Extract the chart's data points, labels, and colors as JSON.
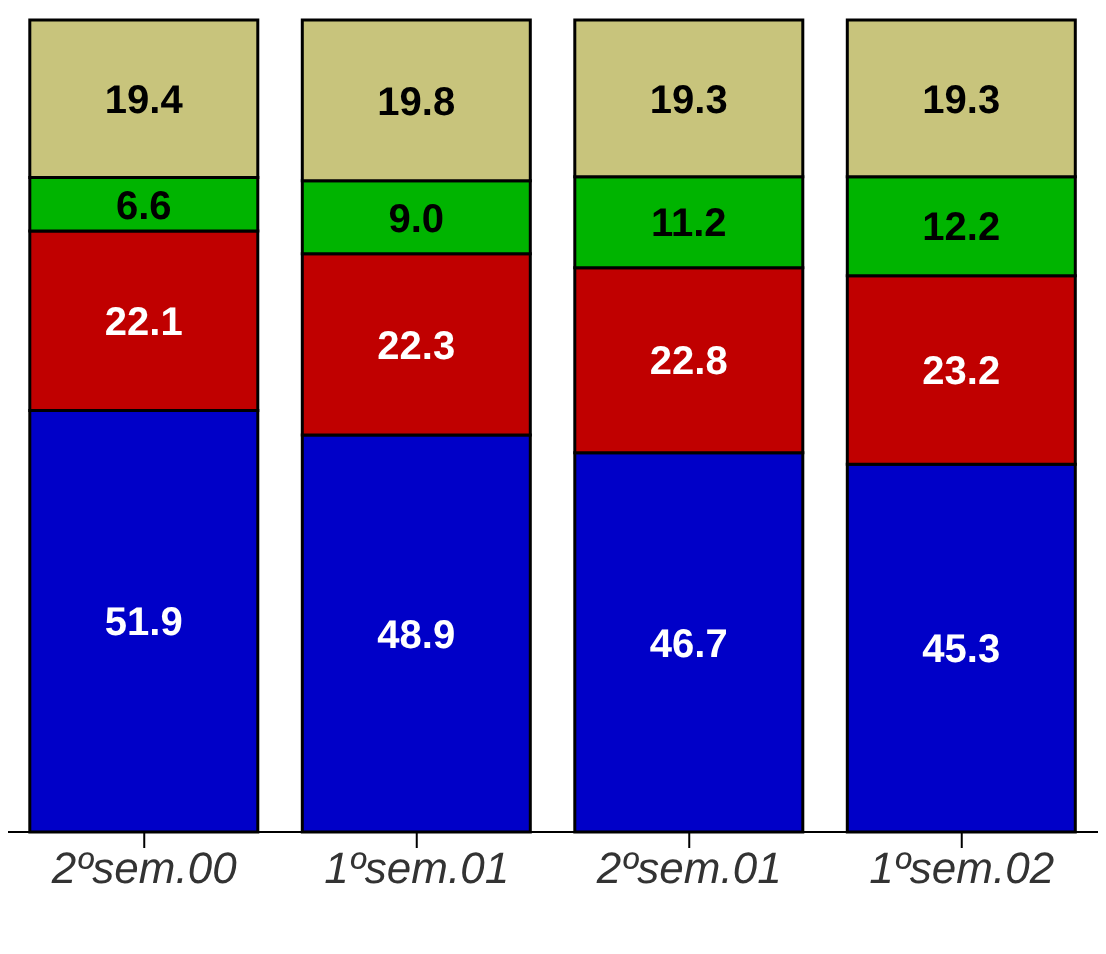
{
  "chart_data": {
    "type": "bar",
    "stacked": true,
    "data_labels": true,
    "tick_labels": "x",
    "legend": false,
    "grid": false,
    "categories": [
      "2ºsem.00",
      "1ºsem.01",
      "2ºsem.01",
      "1ºsem.02"
    ],
    "series": [
      {
        "color": "#0000c8",
        "values": [
          51.9,
          48.9,
          46.7,
          45.3
        ]
      },
      {
        "color": "#c00000",
        "values": [
          22.1,
          22.3,
          22.8,
          23.2
        ]
      },
      {
        "color": "#00b400",
        "values": [
          6.6,
          9.0,
          11.2,
          12.2
        ],
        "value_labels": [
          "6.6",
          "9.0",
          "11.2",
          "12.2"
        ]
      },
      {
        "color": "#c8c47c",
        "values": [
          19.4,
          19.8,
          19.3,
          19.3
        ]
      }
    ]
  }
}
